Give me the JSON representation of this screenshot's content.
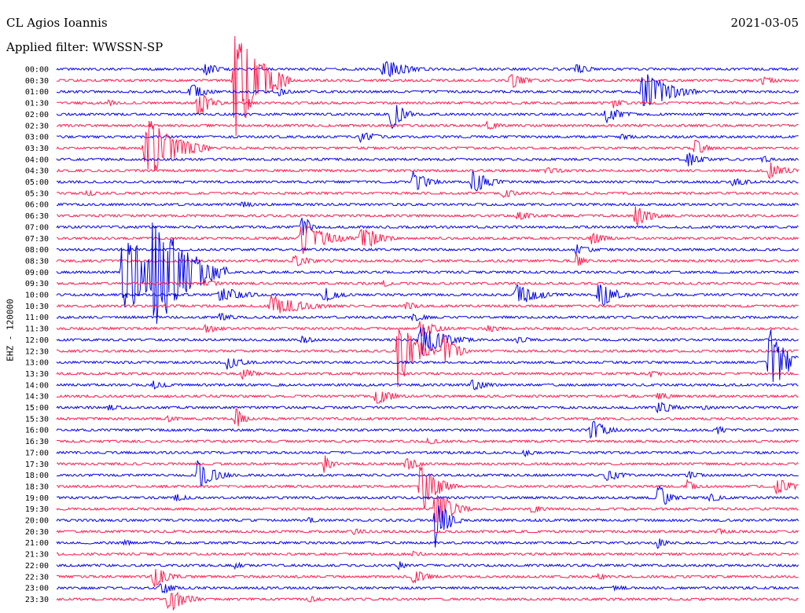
{
  "header": {
    "station": "CL Agios Ioannis",
    "filter": "Applied filter: WWSSN-SP",
    "date": "2021-03-05"
  },
  "chart_data": {
    "type": "helicorder",
    "title": "CL Agios Ioannis",
    "subtitle": "Applied filter: WWSSN-SP",
    "date": "2021-03-05",
    "ylabel": "EHZ - 120000",
    "colors": [
      "#0000e6",
      "#ff1a4d"
    ],
    "rows": [
      {
        "label": "00:00",
        "events": [
          [
            0.2,
            0.6,
            0.02
          ],
          [
            0.44,
            1.0,
            0.03
          ],
          [
            0.7,
            0.5,
            0.02
          ]
        ]
      },
      {
        "label": "00:30",
        "events": [
          [
            0.24,
            5.5,
            0.03
          ],
          [
            0.61,
            0.8,
            0.02
          ],
          [
            0.95,
            0.4,
            0.02
          ]
        ]
      },
      {
        "label": "01:00",
        "events": [
          [
            0.18,
            0.8,
            0.02
          ],
          [
            0.3,
            0.5,
            0.015
          ],
          [
            0.79,
            2.2,
            0.03
          ]
        ]
      },
      {
        "label": "01:30",
        "events": [
          [
            0.07,
            0.4,
            0.01
          ],
          [
            0.19,
            1.5,
            0.015
          ],
          [
            0.75,
            0.5,
            0.015
          ]
        ]
      },
      {
        "label": "02:00",
        "events": [
          [
            0.45,
            1.6,
            0.015
          ],
          [
            0.74,
            0.8,
            0.02
          ]
        ]
      },
      {
        "label": "02:30",
        "events": [
          [
            0.58,
            0.4,
            0.02
          ]
        ]
      },
      {
        "label": "03:00",
        "events": [
          [
            0.41,
            0.6,
            0.02
          ],
          [
            0.76,
            0.3,
            0.02
          ]
        ]
      },
      {
        "label": "03:30",
        "events": [
          [
            0.12,
            3.0,
            0.035
          ],
          [
            0.86,
            0.8,
            0.015
          ]
        ]
      },
      {
        "label": "04:00",
        "events": [
          [
            0.85,
            0.7,
            0.02
          ],
          [
            0.95,
            0.4,
            0.015
          ]
        ]
      },
      {
        "label": "04:30",
        "events": [
          [
            0.96,
            0.9,
            0.02
          ],
          [
            0.66,
            0.3,
            0.03
          ]
        ]
      },
      {
        "label": "05:00",
        "events": [
          [
            0.48,
            1.0,
            0.02
          ],
          [
            0.56,
            1.2,
            0.02
          ],
          [
            0.91,
            0.5,
            0.02
          ]
        ]
      },
      {
        "label": "05:30",
        "events": [
          [
            0.6,
            0.5,
            0.02
          ],
          [
            0.04,
            0.3,
            0.02
          ]
        ]
      },
      {
        "label": "06:00",
        "events": [
          [
            0.25,
            0.3,
            0.02
          ]
        ]
      },
      {
        "label": "06:30",
        "events": [
          [
            0.62,
            0.5,
            0.02
          ],
          [
            0.78,
            1.0,
            0.02
          ]
        ]
      },
      {
        "label": "07:00",
        "events": [
          [
            0.33,
            1.5,
            0.01
          ]
        ]
      },
      {
        "label": "07:30",
        "events": [
          [
            0.33,
            1.6,
            0.03
          ],
          [
            0.41,
            1.5,
            0.02
          ],
          [
            0.72,
            0.6,
            0.02
          ]
        ]
      },
      {
        "label": "08:00",
        "events": [
          [
            0.7,
            0.5,
            0.02
          ]
        ]
      },
      {
        "label": "08:30",
        "events": [
          [
            0.32,
            0.6,
            0.02
          ],
          [
            0.7,
            0.7,
            0.01
          ]
        ]
      },
      {
        "label": "09:00",
        "events": [
          [
            0.09,
            5.0,
            0.03
          ],
          [
            0.13,
            6.0,
            0.04
          ]
        ]
      },
      {
        "label": "09:30",
        "events": [
          [
            0.2,
            0.3,
            0.03
          ],
          [
            0.44,
            0.4,
            0.01
          ]
        ]
      },
      {
        "label": "10:00",
        "events": [
          [
            0.22,
            0.8,
            0.03
          ],
          [
            0.36,
            0.7,
            0.02
          ],
          [
            0.62,
            1.0,
            0.03
          ],
          [
            0.73,
            1.4,
            0.02
          ]
        ]
      },
      {
        "label": "10:30",
        "events": [
          [
            0.29,
            1.0,
            0.04
          ],
          [
            0.47,
            0.4,
            0.02
          ]
        ]
      },
      {
        "label": "11:00",
        "events": [
          [
            0.22,
            0.4,
            0.02
          ],
          [
            0.48,
            0.4,
            0.02
          ]
        ]
      },
      {
        "label": "11:30",
        "events": [
          [
            0.2,
            0.5,
            0.02
          ],
          [
            0.49,
            0.9,
            0.02
          ],
          [
            0.58,
            0.4,
            0.02
          ]
        ]
      },
      {
        "label": "12:00",
        "events": [
          [
            0.33,
            0.4,
            0.02
          ],
          [
            0.49,
            1.6,
            0.03
          ],
          [
            0.62,
            0.4,
            0.02
          ]
        ]
      },
      {
        "label": "12:30",
        "events": [
          [
            0.46,
            3.5,
            0.02
          ],
          [
            0.52,
            2.0,
            0.015
          ]
        ]
      },
      {
        "label": "13:00",
        "events": [
          [
            0.23,
            0.7,
            0.02
          ],
          [
            0.96,
            3.5,
            0.02
          ]
        ]
      },
      {
        "label": "13:30",
        "events": [
          [
            0.25,
            0.5,
            0.02
          ],
          [
            0.8,
            0.4,
            0.015
          ]
        ]
      },
      {
        "label": "14:00",
        "events": [
          [
            0.56,
            0.6,
            0.02
          ],
          [
            0.13,
            0.4,
            0.02
          ]
        ]
      },
      {
        "label": "14:30",
        "events": [
          [
            0.43,
            0.9,
            0.02
          ],
          [
            0.81,
            0.4,
            0.02
          ]
        ]
      },
      {
        "label": "15:00",
        "events": [
          [
            0.07,
            0.3,
            0.02
          ],
          [
            0.81,
            0.7,
            0.02
          ],
          [
            0.87,
            0.3,
            0.02
          ]
        ]
      },
      {
        "label": "15:30",
        "events": [
          [
            0.24,
            1.2,
            0.01
          ],
          [
            0.15,
            0.3,
            0.02
          ]
        ]
      },
      {
        "label": "16:00",
        "events": [
          [
            0.72,
            1.0,
            0.02
          ],
          [
            0.89,
            0.5,
            0.01
          ]
        ]
      },
      {
        "label": "16:30",
        "events": [
          [
            0.5,
            0.3,
            0.02
          ]
        ]
      },
      {
        "label": "17:00",
        "events": [
          [
            0.63,
            0.4,
            0.015
          ]
        ]
      },
      {
        "label": "17:30",
        "events": [
          [
            0.36,
            0.9,
            0.01
          ],
          [
            0.47,
            0.6,
            0.02
          ]
        ]
      },
      {
        "label": "18:00",
        "events": [
          [
            0.19,
            1.5,
            0.02
          ],
          [
            0.74,
            0.7,
            0.02
          ],
          [
            0.85,
            0.4,
            0.02
          ]
        ]
      },
      {
        "label": "18:30",
        "events": [
          [
            0.49,
            2.5,
            0.02
          ],
          [
            0.85,
            0.7,
            0.01
          ],
          [
            0.97,
            0.8,
            0.02
          ]
        ]
      },
      {
        "label": "19:00",
        "events": [
          [
            0.16,
            0.4,
            0.02
          ],
          [
            0.81,
            1.3,
            0.015
          ],
          [
            0.88,
            0.4,
            0.02
          ]
        ]
      },
      {
        "label": "19:30",
        "events": [
          [
            0.51,
            2.0,
            0.02
          ],
          [
            0.64,
            0.4,
            0.02
          ]
        ]
      },
      {
        "label": "20:00",
        "events": [
          [
            0.34,
            0.3,
            0.02
          ],
          [
            0.51,
            2.5,
            0.015
          ]
        ]
      },
      {
        "label": "20:30",
        "events": [
          [
            0.4,
            0.3,
            0.02
          ],
          [
            0.89,
            0.3,
            0.02
          ]
        ]
      },
      {
        "label": "21:00",
        "events": [
          [
            0.09,
            0.4,
            0.01
          ],
          [
            0.81,
            0.6,
            0.01
          ]
        ]
      },
      {
        "label": "21:30",
        "events": [
          [
            0.48,
            0.3,
            0.02
          ]
        ]
      },
      {
        "label": "22:00",
        "events": [
          [
            0.24,
            0.4,
            0.01
          ],
          [
            0.46,
            0.5,
            0.01
          ]
        ]
      },
      {
        "label": "22:30",
        "events": [
          [
            0.13,
            1.0,
            0.02
          ],
          [
            0.48,
            0.7,
            0.02
          ],
          [
            0.73,
            0.4,
            0.01
          ]
        ]
      },
      {
        "label": "23:00",
        "events": [
          [
            0.14,
            0.6,
            0.02
          ],
          [
            0.75,
            0.3,
            0.02
          ]
        ]
      },
      {
        "label": "23:30",
        "events": [
          [
            0.15,
            1.4,
            0.02
          ],
          [
            0.34,
            0.3,
            0.02
          ]
        ]
      }
    ]
  }
}
